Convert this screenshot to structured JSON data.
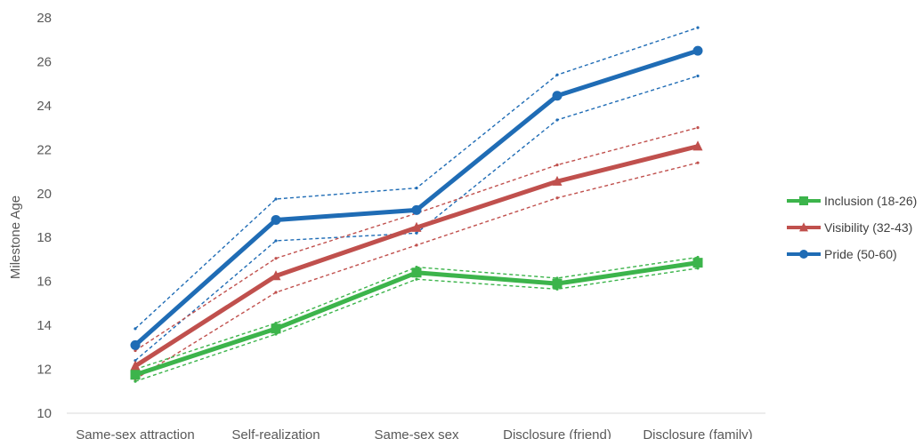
{
  "chart_data": {
    "type": "line",
    "title": "",
    "xlabel": "",
    "ylabel": "Milestone Age",
    "ylim": [
      10,
      28
    ],
    "yticks": [
      10,
      12,
      14,
      16,
      18,
      20,
      22,
      24,
      26,
      28
    ],
    "categories": [
      "Same-sex attraction",
      "Self-realization",
      "Same-sex sex",
      "Disclosure (friend)",
      "Disclosure (family)"
    ],
    "grid": false,
    "legend_position": "right",
    "series": [
      {
        "name": "Inclusion (18-26)",
        "color": "#3cb44b",
        "marker": "square",
        "values": [
          11.75,
          13.85,
          16.4,
          15.9,
          16.85
        ],
        "ci_upper": [
          12.0,
          14.1,
          16.65,
          16.15,
          17.1
        ],
        "ci_lower": [
          11.45,
          13.6,
          16.1,
          15.65,
          16.6
        ]
      },
      {
        "name": "Visibility (32-43)",
        "color": "#c0504d",
        "marker": "triangle",
        "values": [
          12.15,
          16.25,
          18.45,
          20.55,
          22.15
        ],
        "ci_upper": [
          12.85,
          17.05,
          19.1,
          21.3,
          23.0
        ],
        "ci_lower": [
          11.55,
          15.5,
          17.65,
          19.8,
          21.4
        ]
      },
      {
        "name": "Pride (50-60)",
        "color": "#1f6cb5",
        "marker": "circle",
        "values": [
          13.1,
          18.8,
          19.25,
          24.45,
          26.5
        ],
        "ci_upper": [
          13.85,
          19.75,
          20.25,
          25.4,
          27.55
        ],
        "ci_lower": [
          12.4,
          17.85,
          18.2,
          23.35,
          25.35
        ]
      }
    ]
  }
}
